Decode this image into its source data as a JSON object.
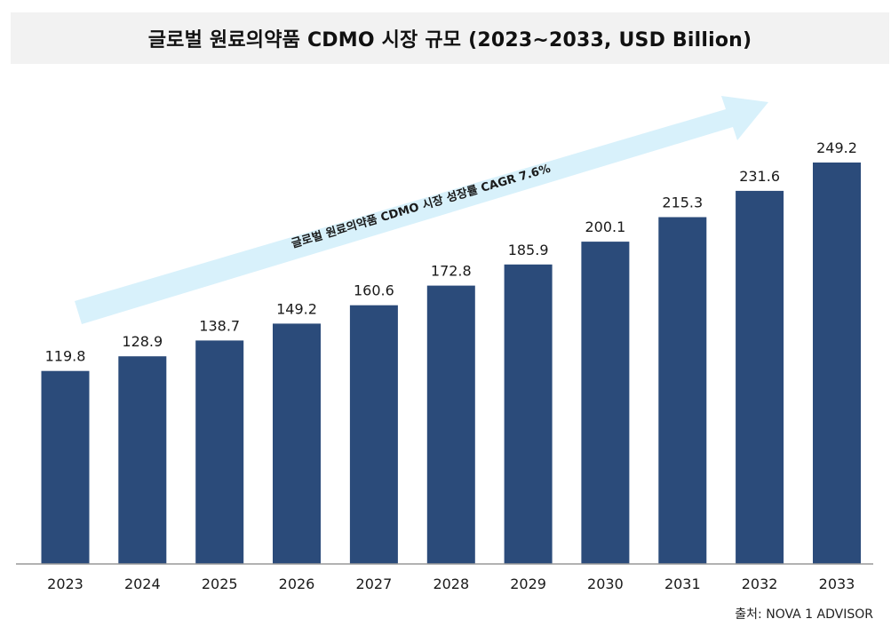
{
  "title": "글로벌 원료의약품 CDMO 시장 규모 (2023~2033, USD Billion)",
  "source": "출처: NOVA 1 ADVISOR",
  "chart_data": {
    "type": "bar",
    "title": "글로벌 원료의약품 CDMO 시장 규모 (2023~2033, USD Billion)",
    "categories": [
      "2023",
      "2024",
      "2025",
      "2026",
      "2027",
      "2028",
      "2029",
      "2030",
      "2031",
      "2032",
      "2033"
    ],
    "series": [
      {
        "values": [
          119.8,
          128.9,
          138.7,
          149.2,
          160.6,
          172.8,
          185.9,
          200.1,
          215.3,
          231.6,
          249.2
        ]
      }
    ],
    "data_labels": [
      "119.8",
      "128.9",
      "138.7",
      "149.2",
      "160.6",
      "172.8",
      "185.9",
      "200.1",
      "215.3",
      "231.6",
      "249.2"
    ],
    "annotation": "글로벌 원료의약품 CDMO 시장 성장률 CAGR 7.6%",
    "ylim": [
      0,
      249.2
    ],
    "grid": false,
    "legend": "none",
    "colors": {
      "bar": "#2b4b7a",
      "arrow": "#d8f1fb",
      "axis": "#999999"
    }
  }
}
